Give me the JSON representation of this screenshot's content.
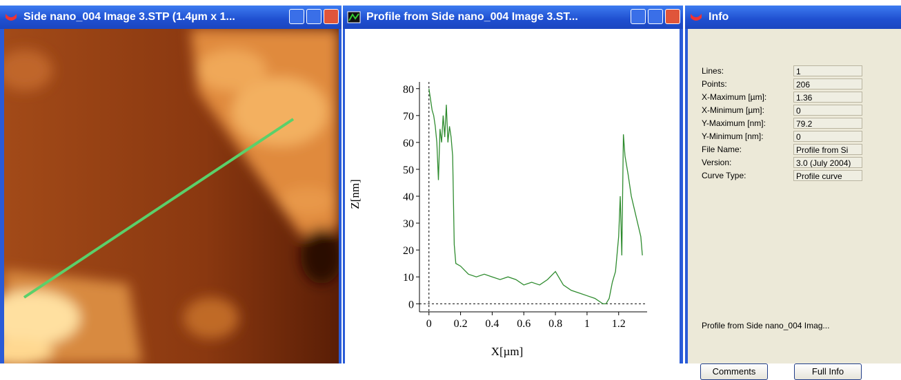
{
  "windows": [
    {
      "title": "Side  nano_004 Image 3.STP (1.4µm x 1..."
    },
    {
      "title": "Profile from Side  nano_004 Image 3.ST..."
    },
    {
      "title": "Info"
    }
  ],
  "chart_data": {
    "type": "line",
    "x_label": "X[µm]",
    "y_label": "Z[nm]",
    "xlim": [
      -0.06,
      1.38
    ],
    "ylim": [
      -3,
      82.5
    ],
    "xticks": [
      0,
      0.2,
      0.4,
      0.6,
      0.8,
      1,
      1.2
    ],
    "yticks": [
      0,
      10,
      20,
      30,
      40,
      50,
      60,
      70,
      80
    ],
    "zero_lines": true,
    "series": [
      {
        "color": "#2e8b2e",
        "x": [
          0,
          0.01,
          0.02,
          0.03,
          0.04,
          0.05,
          0.06,
          0.07,
          0.08,
          0.09,
          0.1,
          0.11,
          0.12,
          0.13,
          0.14,
          0.15,
          0.16,
          0.17,
          0.2,
          0.25,
          0.3,
          0.35,
          0.4,
          0.45,
          0.5,
          0.55,
          0.6,
          0.65,
          0.7,
          0.75,
          0.8,
          0.82,
          0.85,
          0.9,
          0.95,
          1,
          1.05,
          1.1,
          1.12,
          1.14,
          1.16,
          1.18,
          1.2,
          1.21,
          1.22,
          1.23,
          1.24,
          1.26,
          1.28,
          1.3,
          1.32,
          1.34,
          1.35
        ],
        "values": [
          80,
          76,
          72,
          70,
          66,
          60,
          46,
          65,
          60,
          70,
          62,
          74,
          60,
          66,
          62,
          55,
          22,
          15,
          14,
          11,
          10,
          11,
          10,
          9,
          10,
          9,
          7,
          8,
          7,
          9,
          12,
          10,
          7,
          5,
          4,
          3,
          2,
          0,
          0,
          2,
          8,
          12,
          25,
          40,
          18,
          63,
          55,
          48,
          40,
          35,
          30,
          25,
          18
        ]
      }
    ]
  },
  "info": {
    "rows": [
      {
        "label": "Lines:",
        "value": "1"
      },
      {
        "label": "Points:",
        "value": "206"
      },
      {
        "label": "X-Maximum [µm]:",
        "value": "1.36"
      },
      {
        "label": "X-Minimum [µm]:",
        "value": "0"
      },
      {
        "label": "Y-Maximum [nm]:",
        "value": "79.2"
      },
      {
        "label": "Y-Minimum [nm]:",
        "value": "0"
      },
      {
        "label": "File Name:",
        "value": "Profile from Si"
      },
      {
        "label": "Version:",
        "value": "3.0 (July 2004)"
      },
      {
        "label": "Curve Type:",
        "value": "Profile curve"
      }
    ],
    "footer": "Profile from Side  nano_004 Imag...",
    "buttons": [
      "Comments",
      "Full Info"
    ]
  }
}
